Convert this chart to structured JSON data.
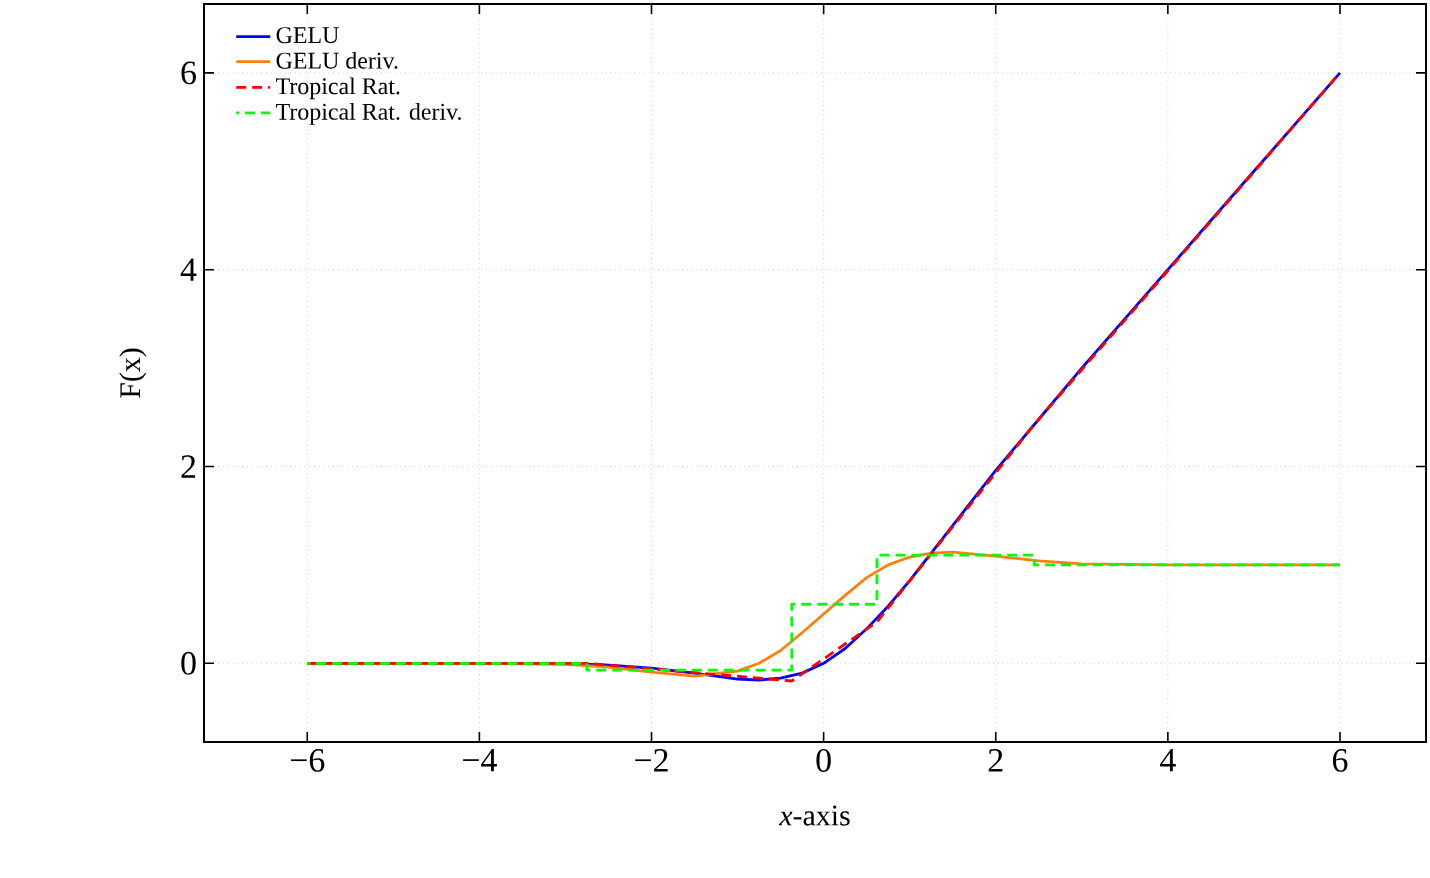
{
  "chart_data": {
    "type": "line",
    "xlabel": "*x*-axis",
    "ylabel": "F(x)",
    "xlim": [
      -7.2,
      7.0
    ],
    "ylim": [
      -0.8,
      6.7
    ],
    "xticks": [
      {
        "value": -6,
        "label": "−6"
      },
      {
        "value": -4,
        "label": "−4"
      },
      {
        "value": -2,
        "label": "−2"
      },
      0,
      2,
      4,
      6
    ],
    "yticks": [
      0,
      2,
      4,
      6
    ],
    "grid": true,
    "legend": "top left",
    "line_style": "solid",
    "series": [
      {
        "name": "GELU",
        "color": "#0000ff",
        "x": [
          -6,
          -4,
          -3,
          -2.5,
          -2,
          -1.5,
          -1,
          -0.75,
          -0.5,
          -0.25,
          0,
          0.25,
          0.5,
          0.75,
          1,
          1.25,
          1.5,
          2,
          2.5,
          3,
          4,
          5,
          6
        ],
        "values": [
          0,
          0,
          0,
          -0.02,
          -0.05,
          -0.1,
          -0.16,
          -0.17,
          -0.15,
          -0.1,
          0,
          0.15,
          0.35,
          0.58,
          0.84,
          1.12,
          1.4,
          1.96,
          2.48,
          3,
          4,
          5,
          6
        ]
      },
      {
        "name": "GELU deriv.",
        "color": "#ff7f0e",
        "x": [
          -6,
          -4,
          -3,
          -2.5,
          -2,
          -1.5,
          -1,
          -0.75,
          -0.5,
          -0.25,
          0,
          0.25,
          0.5,
          0.75,
          1,
          1.25,
          1.5,
          2,
          2.5,
          3,
          4,
          5,
          6
        ],
        "values": [
          0,
          0,
          -0.01,
          -0.04,
          -0.09,
          -0.13,
          -0.08,
          0,
          0.13,
          0.31,
          0.5,
          0.69,
          0.87,
          1,
          1.08,
          1.12,
          1.13,
          1.09,
          1.04,
          1.01,
          1,
          1,
          1
        ]
      },
      {
        "name": "Tropical Rat.",
        "color": "#ff0000",
        "line_style": "dashed",
        "x": [
          -6,
          -2.75,
          -0.37,
          0.62,
          2.45,
          6
        ],
        "values": [
          0,
          0,
          -0.18,
          0.42,
          2.43,
          6
        ]
      },
      {
        "name": "Tropical Rat. deriv.",
        "type": "step",
        "color": "#00ff00",
        "line_style": "dashed",
        "x": [
          -6,
          -2.75,
          -0.37,
          0.62,
          2.45,
          6
        ],
        "values": [
          0,
          -0.07,
          0.6,
          1.1,
          1,
          1
        ]
      }
    ]
  }
}
